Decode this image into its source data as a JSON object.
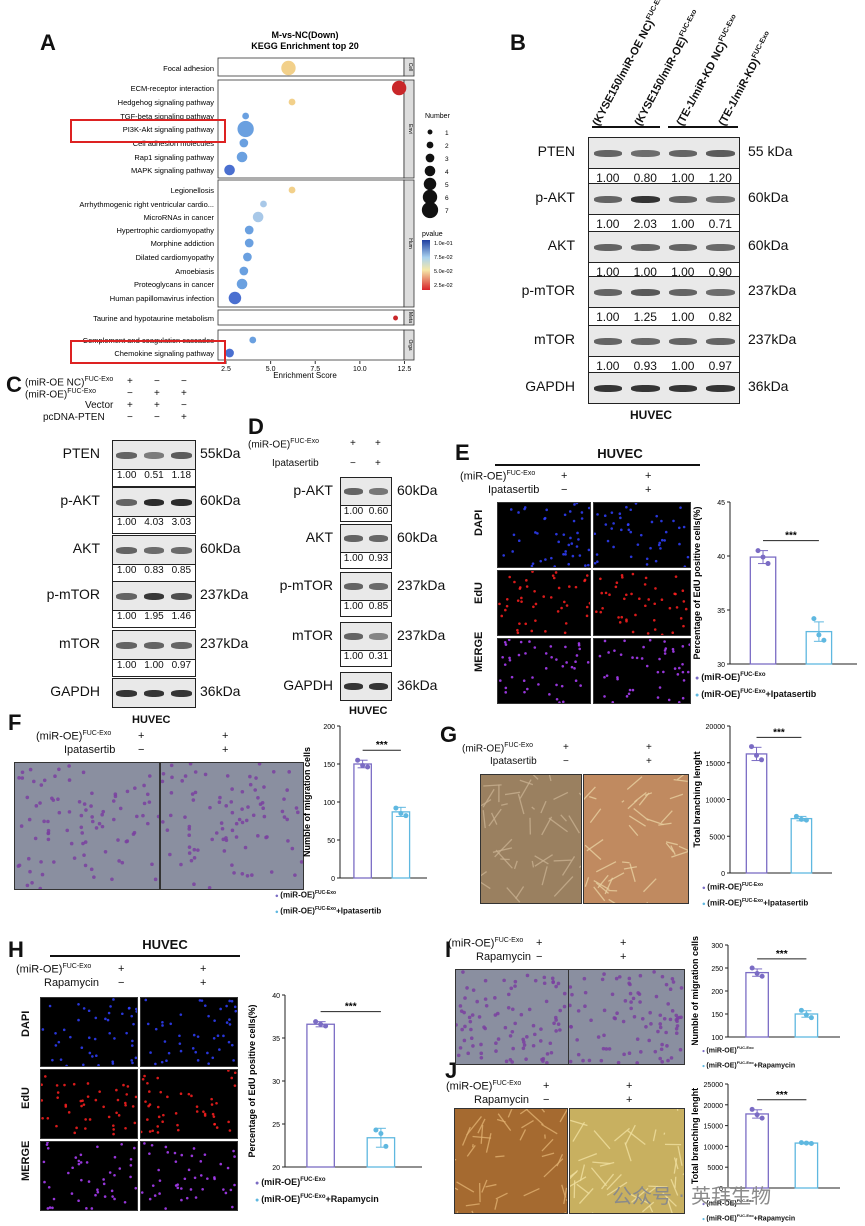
{
  "panels": {
    "A": "A",
    "B": "B",
    "C": "C",
    "D": "D",
    "E": "E",
    "F": "F",
    "G": "G",
    "H": "H",
    "I": "I",
    "J": "J"
  },
  "kegg": {
    "title1": "M-vs-NC(Down)",
    "title2": "KEGG Enrichment top 20",
    "xlabel": "Enrichment Score",
    "xticks": [
      "2.5",
      "5.0",
      "7.5",
      "10.0",
      "12.5"
    ],
    "legend_number_title": "Number",
    "legend_numbers": [
      "1",
      "2",
      "3",
      "4",
      "5",
      "6",
      "7"
    ],
    "legend_pvalue_title": "pvalue",
    "legend_pvalues": [
      "1.0e-01",
      "7.5e-02",
      "5.0e-02",
      "2.5e-02"
    ],
    "groups": [
      "Cell",
      "Envi",
      "Hum",
      "Meta",
      "Orga"
    ],
    "terms": [
      {
        "name": "Focal adhesion",
        "score": 6.0,
        "num": 6,
        "group": 0
      },
      {
        "name": "ECM-receptor interaction",
        "score": 12.2,
        "num": 6,
        "group": 1
      },
      {
        "name": "Hedgehog signaling pathway",
        "score": 6.2,
        "num": 2,
        "group": 1
      },
      {
        "name": "TGF-beta signaling pathway",
        "score": 3.6,
        "num": 2,
        "group": 1
      },
      {
        "name": "PI3K-Akt signaling pathway",
        "score": 3.6,
        "num": 7,
        "group": 1
      },
      {
        "name": "Cell adhesion molecules",
        "score": 3.5,
        "num": 3,
        "group": 1
      },
      {
        "name": "Rap1 signaling pathway",
        "score": 3.4,
        "num": 4,
        "group": 1
      },
      {
        "name": "MAPK signaling pathway",
        "score": 2.7,
        "num": 4,
        "group": 1
      },
      {
        "name": "Legionellosis",
        "score": 6.2,
        "num": 2,
        "group": 2
      },
      {
        "name": "Arrhythmogenic right ventricular cardio...",
        "score": 4.6,
        "num": 2,
        "group": 2
      },
      {
        "name": "MicroRNAs in cancer",
        "score": 4.3,
        "num": 4,
        "group": 2
      },
      {
        "name": "Hypertrophic cardiomyopathy",
        "score": 3.8,
        "num": 3,
        "group": 2
      },
      {
        "name": "Morphine addiction",
        "score": 3.8,
        "num": 3,
        "group": 2
      },
      {
        "name": "Dilated cardiomyopathy",
        "score": 3.7,
        "num": 3,
        "group": 2
      },
      {
        "name": "Amoebiasis",
        "score": 3.5,
        "num": 3,
        "group": 2
      },
      {
        "name": "Proteoglycans in cancer",
        "score": 3.4,
        "num": 4,
        "group": 2
      },
      {
        "name": "Human papillomavirus infection",
        "score": 3.0,
        "num": 5,
        "group": 2
      },
      {
        "name": "Taurine and hypotaurine metabolism",
        "score": 12.0,
        "num": 1,
        "group": 3
      },
      {
        "name": "Complement and coagulation cascades",
        "score": 4.0,
        "num": 2,
        "group": 4
      },
      {
        "name": "Chemokine signaling pathway",
        "score": 2.7,
        "num": 3,
        "group": 4
      }
    ]
  },
  "blotB": {
    "headers": [
      "(KYSE150/miR-OE NC)",
      "(KYSE150/miR-OE)",
      "(TE-1/miR-KD NC)",
      "(TE-1/miR-KD)"
    ],
    "sup": "FUC-Exo",
    "cell": "HUVEC",
    "rows": [
      {
        "name": "PTEN",
        "mw": "55 kDa",
        "vals": [
          "1.00",
          "0.80",
          "1.00",
          "1.20"
        ]
      },
      {
        "name": "p-AKT",
        "mw": "60kDa",
        "vals": [
          "1.00",
          "2.03",
          "1.00",
          "0.71"
        ]
      },
      {
        "name": "AKT",
        "mw": "60kDa",
        "vals": [
          "1.00",
          "1.00",
          "1.00",
          "0.90"
        ]
      },
      {
        "name": "p-mTOR",
        "mw": "237kDa",
        "vals": [
          "1.00",
          "1.25",
          "1.00",
          "0.82"
        ]
      },
      {
        "name": "mTOR",
        "mw": "237kDa",
        "vals": [
          "1.00",
          "0.93",
          "1.00",
          "0.97"
        ]
      },
      {
        "name": "GAPDH",
        "mw": "36kDa",
        "vals": []
      }
    ]
  },
  "blotC": {
    "conds": [
      {
        "label": "(miR-OE NC)",
        "sup": "FUC-Exo",
        "signs": [
          "+",
          "−",
          "−"
        ]
      },
      {
        "label": "(miR-OE)",
        "sup": "FUC-Exo",
        "signs": [
          "−",
          "+",
          "+"
        ]
      },
      {
        "label": "Vector",
        "sup": "",
        "signs": [
          "+",
          "+",
          "−"
        ]
      },
      {
        "label": "pcDNA-PTEN",
        "sup": "",
        "signs": [
          "−",
          "−",
          "+"
        ]
      }
    ],
    "cell": "HUVEC",
    "rows": [
      {
        "name": "PTEN",
        "mw": "55kDa",
        "vals": [
          "1.00",
          "0.51",
          "1.18"
        ]
      },
      {
        "name": "p-AKT",
        "mw": "60kDa",
        "vals": [
          "1.00",
          "4.03",
          "3.03"
        ]
      },
      {
        "name": "AKT",
        "mw": "60kDa",
        "vals": [
          "1.00",
          "0.83",
          "0.85"
        ]
      },
      {
        "name": "p-mTOR",
        "mw": "237kDa",
        "vals": [
          "1.00",
          "1.95",
          "1.46"
        ]
      },
      {
        "name": "mTOR",
        "mw": "237kDa",
        "vals": [
          "1.00",
          "1.00",
          "0.97"
        ]
      },
      {
        "name": "GAPDH",
        "mw": "36kDa",
        "vals": []
      }
    ]
  },
  "blotD": {
    "conds": [
      {
        "label": "(miR-OE)",
        "sup": "FUC-Exo",
        "signs": [
          "+",
          "+"
        ]
      },
      {
        "label": "Ipatasertib",
        "sup": "",
        "signs": [
          "−",
          "+"
        ]
      }
    ],
    "cell": "HUVEC",
    "rows": [
      {
        "name": "p-AKT",
        "mw": "60kDa",
        "vals": [
          "1.00",
          "0.60"
        ]
      },
      {
        "name": "AKT",
        "mw": "60kDa",
        "vals": [
          "1.00",
          "0.93"
        ]
      },
      {
        "name": "p-mTOR",
        "mw": "237kDa",
        "vals": [
          "1.00",
          "0.85"
        ]
      },
      {
        "name": "mTOR",
        "mw": "237kDa",
        "vals": [
          "1.00",
          "0.31"
        ]
      },
      {
        "name": "GAPDH",
        "mw": "36kDa",
        "vals": []
      }
    ]
  },
  "panelE": {
    "title": "HUVEC",
    "cond1": "(miR-OE)",
    "sup": "FUC-Exo",
    "cond2": "Ipatasertib",
    "signs1": [
      "+",
      "+"
    ],
    "signs2": [
      "−",
      "+"
    ],
    "rows": [
      "DAPI",
      "EdU",
      "MERGE"
    ],
    "ylabel": "Percentage of EdU positive cells(%)",
    "legend": [
      "(miR-OE)",
      "(miR-OE)"
    ],
    "legend_suffix": [
      "",
      "+Ipatasertib"
    ],
    "sig": "***"
  },
  "panelF": {
    "cond1": "(miR-OE)",
    "sup": "FUC-Exo",
    "cond2": "Ipatasertib",
    "signs1": [
      "+",
      "+"
    ],
    "signs2": [
      "−",
      "+"
    ],
    "ylabel": "Numble of migration cells",
    "legend": [
      "(miR-OE)",
      "(miR-OE)"
    ],
    "legend_suffix": [
      "",
      "+Ipatasertib"
    ],
    "sig": "***"
  },
  "panelG": {
    "cond1": "(miR-OE)",
    "sup": "FUC-Exo",
    "cond2": "Ipatasertib",
    "signs1": [
      "+",
      "+"
    ],
    "signs2": [
      "−",
      "+"
    ],
    "ylabel": "Total branching lenght",
    "legend": [
      "(miR-OE)",
      "(miR-OE)"
    ],
    "legend_suffix": [
      "",
      "+Ipatasertib"
    ],
    "sig": "***"
  },
  "panelH": {
    "title": "HUVEC",
    "cond1": "(miR-OE)",
    "sup": "FUC-Exo",
    "cond2": "Rapamycin",
    "signs1": [
      "+",
      "+"
    ],
    "signs2": [
      "−",
      "+"
    ],
    "rows": [
      "DAPI",
      "EdU",
      "MERGE"
    ],
    "ylabel": "Percentage of EdU positive cells(%)",
    "legend": [
      "(miR-OE)",
      "(miR-OE)"
    ],
    "legend_suffix": [
      "",
      "+Rapamycin"
    ],
    "sig": "***"
  },
  "panelI": {
    "cond1": "(miR-OE)",
    "sup": "FUC-Exo",
    "cond2": "Rapamycin",
    "signs1": [
      "+",
      "+"
    ],
    "signs2": [
      "−",
      "+"
    ],
    "ylabel": "Numble of migration cells",
    "legend": [
      "(miR-OE)",
      "(miR-OE)"
    ],
    "legend_suffix": [
      "",
      "+Rapamycin"
    ],
    "sig": "***"
  },
  "panelJ": {
    "cond1": "(miR-OE)",
    "sup": "FUC-Exo",
    "cond2": "Rapamycin",
    "signs1": [
      "+",
      "+"
    ],
    "signs2": [
      "−",
      "+"
    ],
    "ylabel": "Total branching lenght",
    "legend": [
      "(miR-OE)",
      "(miR-OE)"
    ],
    "legend_suffix": [
      "",
      "+Rapamycin"
    ],
    "sig": "***"
  },
  "watermark": "公众号 · 英拜生物",
  "chart_data": [
    {
      "type": "scatter",
      "id": "kegg",
      "title": "M-vs-NC(Down) KEGG Enrichment top 20",
      "xlabel": "Enrichment Score",
      "xlim": [
        2.5,
        12.5
      ],
      "note": "bubble size = Number, color = pvalue"
    },
    {
      "type": "bar",
      "id": "E",
      "categories": [
        "(miR-OE)FUC-Exo",
        "(miR-OE)FUC-Exo+Ipatasertib"
      ],
      "values": [
        39.9,
        33.0
      ],
      "errors": [
        0.6,
        0.9
      ],
      "points": [
        [
          40.5,
          39.9,
          39.3
        ],
        [
          34.2,
          32.7,
          32.2
        ]
      ],
      "ylim": [
        30,
        45
      ],
      "yticks": [
        "30",
        "35",
        "40",
        "45"
      ],
      "colors": [
        "#7b6cc4",
        "#5fb8e0"
      ]
    },
    {
      "type": "bar",
      "id": "F",
      "categories": [
        "(miR-OE)FUC-Exo",
        "(miR-OE)FUC-Exo+Ipatasertib"
      ],
      "values": [
        150,
        87
      ],
      "errors": [
        5,
        6
      ],
      "points": [
        [
          155,
          148,
          146
        ],
        [
          92,
          85,
          82
        ]
      ],
      "ylim": [
        0,
        200
      ],
      "yticks": [
        "0",
        "50",
        "100",
        "150",
        "200"
      ],
      "colors": [
        "#7b6cc4",
        "#5fb8e0"
      ]
    },
    {
      "type": "bar",
      "id": "G",
      "categories": [
        "(miR-OE)FUC-Exo",
        "(miR-OE)FUC-Exo+Ipatasertib"
      ],
      "values": [
        16200,
        7400
      ],
      "errors": [
        900,
        300
      ],
      "points": [
        [
          17200,
          16000,
          15400
        ],
        [
          7700,
          7300,
          7200
        ]
      ],
      "ylim": [
        0,
        20000
      ],
      "yticks": [
        "0",
        "5000",
        "10000",
        "15000",
        "20000"
      ],
      "colors": [
        "#7b6cc4",
        "#5fb8e0"
      ]
    },
    {
      "type": "bar",
      "id": "H",
      "categories": [
        "(miR-OE)FUC-Exo",
        "(miR-OE)FUC-Exo+Rapamycin"
      ],
      "values": [
        36.6,
        23.4
      ],
      "errors": [
        0.3,
        1.1
      ],
      "points": [
        [
          36.9,
          36.6,
          36.4
        ],
        [
          24.3,
          23.9,
          22.4
        ]
      ],
      "ylim": [
        20,
        40
      ],
      "yticks": [
        "20",
        "25",
        "30",
        "35",
        "40"
      ],
      "colors": [
        "#7b6cc4",
        "#5fb8e0"
      ]
    },
    {
      "type": "bar",
      "id": "I",
      "categories": [
        "(miR-OE)FUC-Exo",
        "(miR-OE)FUC-Exo+Rapamycin"
      ],
      "values": [
        240,
        150
      ],
      "errors": [
        8,
        7
      ],
      "points": [
        [
          250,
          238,
          232
        ],
        [
          158,
          148,
          142
        ]
      ],
      "ylim": [
        100,
        300
      ],
      "yticks": [
        "100",
        "150",
        "200",
        "250",
        "300"
      ],
      "colors": [
        "#7b6cc4",
        "#5fb8e0"
      ]
    },
    {
      "type": "bar",
      "id": "J",
      "categories": [
        "(miR-OE)FUC-Exo",
        "(miR-OE)FUC-Exo+Rapamycin"
      ],
      "values": [
        17800,
        10800
      ],
      "errors": [
        1000,
        200
      ],
      "points": [
        [
          18900,
          17600,
          16800
        ],
        [
          10900,
          10800,
          10700
        ]
      ],
      "ylim": [
        0,
        25000
      ],
      "yticks": [
        "0",
        "5000",
        "10000",
        "15000",
        "20000",
        "25000"
      ],
      "colors": [
        "#7b6cc4",
        "#5fb8e0"
      ]
    }
  ]
}
